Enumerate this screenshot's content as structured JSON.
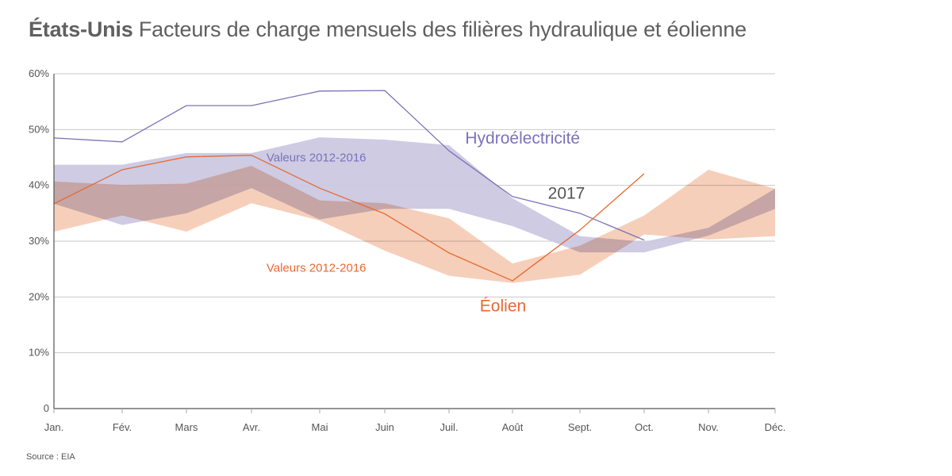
{
  "title": {
    "bold": "États-Unis",
    "rest": "Facteurs de charge mensuels des filières hydraulique et éolienne"
  },
  "source": "Source : EIA",
  "colors": {
    "hydro_line": "#7b72b8",
    "hydro_band": "#cbc8e2",
    "wind_line": "#e8692f",
    "wind_band": "#f4c2a8",
    "overlap": "#d5a498",
    "grid": "#c8c8c8",
    "axis": "#555555",
    "text": "#555555"
  },
  "chart_data": {
    "type": "area",
    "title": "États-Unis Facteurs de charge mensuels des filières hydraulique et éolienne",
    "xlabel": "",
    "ylabel": "",
    "categories": [
      "Jan.",
      "Fév.",
      "Mars",
      "Avr.",
      "Mai",
      "Juin",
      "Juil.",
      "Août",
      "Sept.",
      "Oct.",
      "Nov.",
      "Déc."
    ],
    "yticks": [
      {
        "value": 0,
        "label": "0"
      },
      {
        "value": 10,
        "label": "10%"
      },
      {
        "value": 20,
        "label": "20%"
      },
      {
        "value": 30,
        "label": "30%"
      },
      {
        "value": 40,
        "label": "40%"
      },
      {
        "value": 50,
        "label": "50%"
      },
      {
        "value": 60,
        "label": "60%"
      }
    ],
    "ylim": [
      0,
      60
    ],
    "grid": true,
    "series": [
      {
        "name": "Hydroélectricité Valeurs 2012-2016",
        "kind": "band",
        "color_key": "hydro_band",
        "upper": [
          43.7,
          43.7,
          45.8,
          45.8,
          48.6,
          48.2,
          47.2,
          37.7,
          30.9,
          29.9,
          32.4,
          39.4
        ],
        "lower": [
          36.7,
          32.9,
          35.0,
          39.5,
          33.9,
          35.8,
          35.8,
          32.7,
          28.0,
          28.0,
          31.0,
          35.8
        ]
      },
      {
        "name": "Éolien Valeurs 2012-2016",
        "kind": "band",
        "color_key": "wind_band",
        "upper": [
          40.7,
          40.1,
          40.3,
          43.5,
          37.3,
          36.8,
          34.1,
          26.0,
          29.2,
          34.6,
          42.8,
          39.4
        ],
        "lower": [
          31.7,
          34.6,
          31.7,
          36.8,
          33.7,
          28.3,
          23.8,
          22.5,
          24.0,
          31.2,
          30.3,
          30.9
        ]
      },
      {
        "name": "Hydroélectricité 2017",
        "kind": "line",
        "color_key": "hydro_line",
        "values": [
          48.5,
          47.8,
          54.3,
          54.3,
          56.9,
          57.0,
          46.2,
          38.0,
          35.0,
          30.2,
          null,
          null
        ]
      },
      {
        "name": "Éolien 2017",
        "kind": "line",
        "color_key": "wind_line",
        "values": [
          36.7,
          42.8,
          45.1,
          45.4,
          39.5,
          34.9,
          27.9,
          22.9,
          32.0,
          42.1,
          null,
          null
        ]
      }
    ],
    "annotations": [
      {
        "id": "hydro-label",
        "text": "Hydroélectricité",
        "color_key": "hydro_line",
        "month_index": 7.15,
        "value": 47.5,
        "size": "large"
      },
      {
        "id": "hydro-band-label",
        "text": "Valeurs 2012-2016",
        "color_key": "hydro_line",
        "month_index": 3.95,
        "value": 44.3,
        "size": "small"
      },
      {
        "id": "year-label",
        "text": "2017",
        "color_key": "text",
        "month_index": 7.8,
        "value": 37.6,
        "size": "large"
      },
      {
        "id": "wind-band-label",
        "text": "Valeurs 2012-2016",
        "color_key": "wind_line",
        "month_index": 3.95,
        "value": 24.5,
        "size": "small"
      },
      {
        "id": "wind-label",
        "text": "Éolien",
        "color_key": "wind_line",
        "month_index": 6.85,
        "value": 17.4,
        "size": "large"
      }
    ]
  }
}
